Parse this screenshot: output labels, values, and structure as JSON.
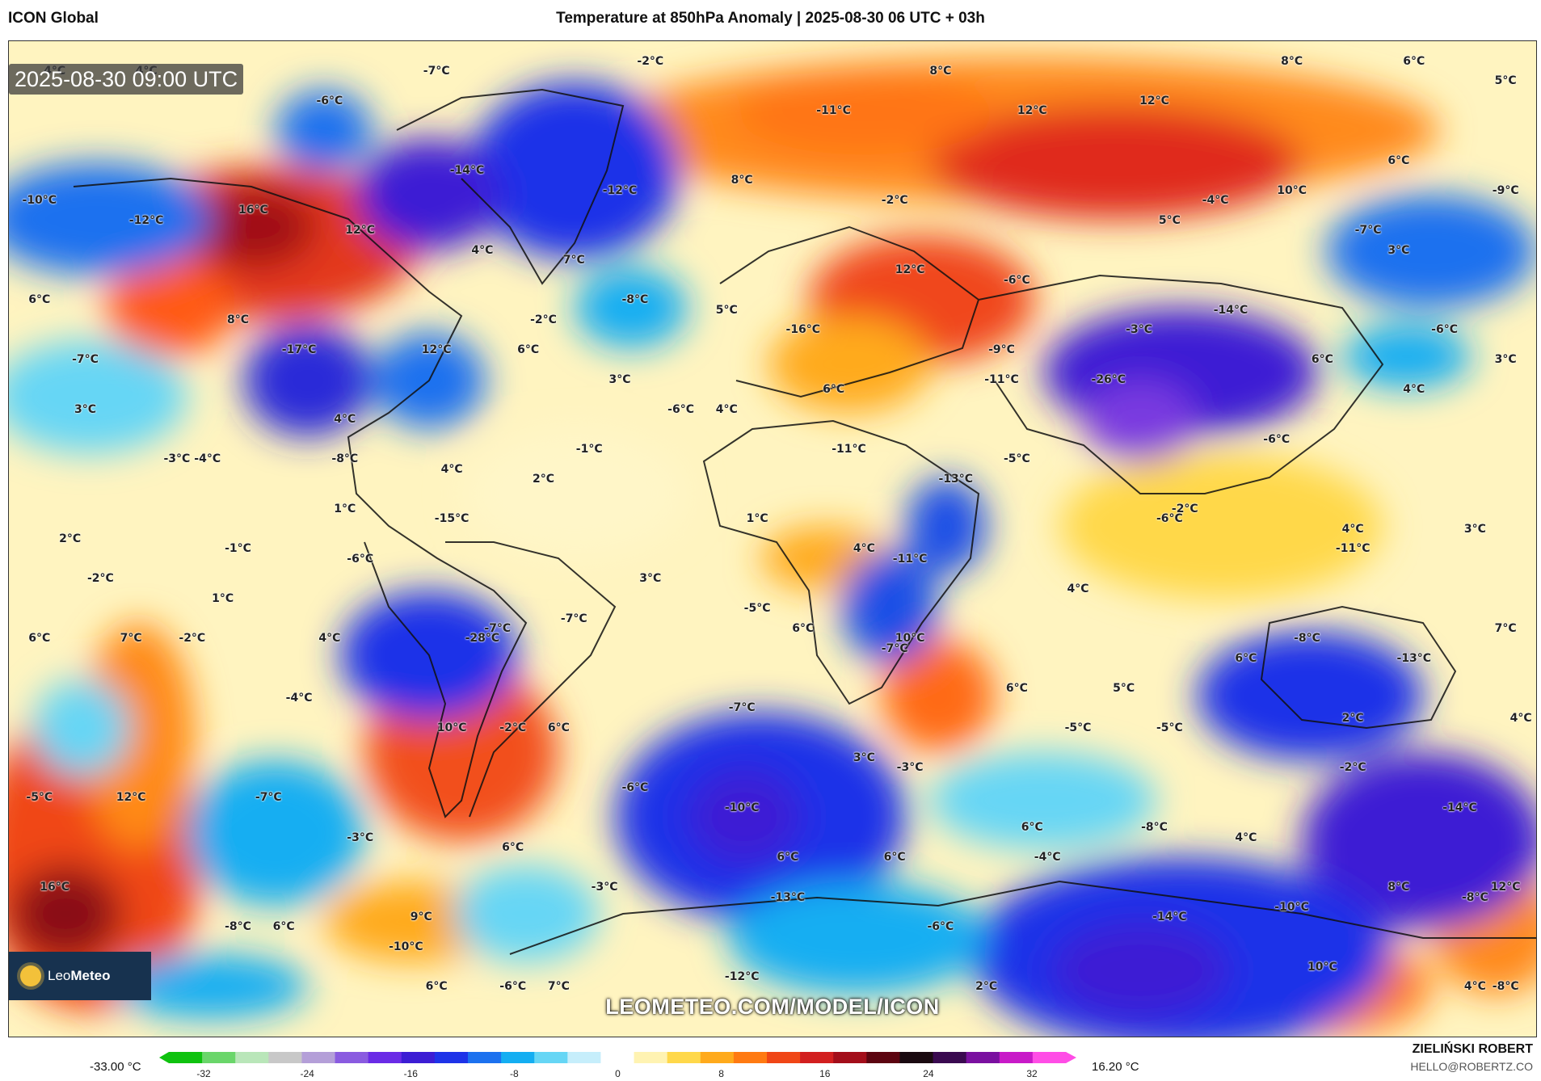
{
  "header": {
    "model": "ICON Global",
    "title": "Temperature at 850hPa Anomaly | 2025-08-30 06 UTC + 03h"
  },
  "map": {
    "valid_time": "2025-08-30 09:00 UTC",
    "watermark_url": "LEOMETEO.COM/MODEL/ICON",
    "logo_text_light": "Leo",
    "logo_text_bold": "Meteo",
    "labels": [
      {
        "t": "4°C",
        "x": 3,
        "y": 3
      },
      {
        "t": "4°C",
        "x": 9,
        "y": 3
      },
      {
        "t": "-7°C",
        "x": 28,
        "y": 3
      },
      {
        "t": "-2°C",
        "x": 42,
        "y": 2
      },
      {
        "t": "8°C",
        "x": 61,
        "y": 3
      },
      {
        "t": "8°C",
        "x": 84,
        "y": 2
      },
      {
        "t": "6°C",
        "x": 92,
        "y": 2
      },
      {
        "t": "5°C",
        "x": 98,
        "y": 4
      },
      {
        "t": "-6°C",
        "x": 21,
        "y": 6
      },
      {
        "t": "-11°C",
        "x": 54,
        "y": 7
      },
      {
        "t": "12°C",
        "x": 67,
        "y": 7
      },
      {
        "t": "12°C",
        "x": 75,
        "y": 6
      },
      {
        "t": "-14°C",
        "x": 30,
        "y": 13
      },
      {
        "t": "-12°C",
        "x": 40,
        "y": 15
      },
      {
        "t": "8°C",
        "x": 48,
        "y": 14
      },
      {
        "t": "6°C",
        "x": 91,
        "y": 12
      },
      {
        "t": "-10°C",
        "x": 2,
        "y": 16
      },
      {
        "t": "16°C",
        "x": 16,
        "y": 17
      },
      {
        "t": "-12°C",
        "x": 9,
        "y": 18
      },
      {
        "t": "12°C",
        "x": 23,
        "y": 19
      },
      {
        "t": "10°C",
        "x": 84,
        "y": 15
      },
      {
        "t": "5°C",
        "x": 76,
        "y": 18
      },
      {
        "t": "-4°C",
        "x": 79,
        "y": 16
      },
      {
        "t": "-9°C",
        "x": 98,
        "y": 15
      },
      {
        "t": "-2°C",
        "x": 58,
        "y": 16
      },
      {
        "t": "-7°C",
        "x": 89,
        "y": 19
      },
      {
        "t": "3°C",
        "x": 91,
        "y": 21
      },
      {
        "t": "4°C",
        "x": 31,
        "y": 21
      },
      {
        "t": "7°C",
        "x": 37,
        "y": 22
      },
      {
        "t": "12°C",
        "x": 59,
        "y": 23
      },
      {
        "t": "-6°C",
        "x": 66,
        "y": 24
      },
      {
        "t": "6°C",
        "x": 2,
        "y": 26
      },
      {
        "t": "8°C",
        "x": 15,
        "y": 28
      },
      {
        "t": "-8°C",
        "x": 41,
        "y": 26
      },
      {
        "t": "5°C",
        "x": 47,
        "y": 27
      },
      {
        "t": "-2°C",
        "x": 35,
        "y": 28
      },
      {
        "t": "-14°C",
        "x": 80,
        "y": 27
      },
      {
        "t": "-16°C",
        "x": 52,
        "y": 29
      },
      {
        "t": "-17°C",
        "x": 19,
        "y": 31
      },
      {
        "t": "12°C",
        "x": 28,
        "y": 31
      },
      {
        "t": "6°C",
        "x": 34,
        "y": 31
      },
      {
        "t": "-6°C",
        "x": 94,
        "y": 29
      },
      {
        "t": "-3°C",
        "x": 74,
        "y": 29
      },
      {
        "t": "-9°C",
        "x": 65,
        "y": 31
      },
      {
        "t": "-7°C",
        "x": 5,
        "y": 32
      },
      {
        "t": "6°C",
        "x": 86,
        "y": 32
      },
      {
        "t": "3°C",
        "x": 98,
        "y": 32
      },
      {
        "t": "3°C",
        "x": 40,
        "y": 34
      },
      {
        "t": "-11°C",
        "x": 65,
        "y": 34
      },
      {
        "t": "-26°C",
        "x": 72,
        "y": 34
      },
      {
        "t": "4°C",
        "x": 92,
        "y": 35
      },
      {
        "t": "6°C",
        "x": 54,
        "y": 35
      },
      {
        "t": "3°C",
        "x": 5,
        "y": 37
      },
      {
        "t": "4°C",
        "x": 22,
        "y": 38
      },
      {
        "t": "-6°C",
        "x": 44,
        "y": 37
      },
      {
        "t": "4°C",
        "x": 47,
        "y": 37
      },
      {
        "t": "-6°C",
        "x": 83,
        "y": 40
      },
      {
        "t": "-8°C",
        "x": 22,
        "y": 42
      },
      {
        "t": "-1°C",
        "x": 38,
        "y": 41
      },
      {
        "t": "-11°C",
        "x": 55,
        "y": 41
      },
      {
        "t": "-5°C",
        "x": 66,
        "y": 42
      },
      {
        "t": "-3°C",
        "x": 11,
        "y": 42
      },
      {
        "t": "-4°C",
        "x": 13,
        "y": 42
      },
      {
        "t": "4°C",
        "x": 29,
        "y": 43
      },
      {
        "t": "-13°C",
        "x": 62,
        "y": 44
      },
      {
        "t": "2°C",
        "x": 35,
        "y": 44
      },
      {
        "t": "1°C",
        "x": 22,
        "y": 47
      },
      {
        "t": "-2°C",
        "x": 77,
        "y": 47
      },
      {
        "t": "-6°C",
        "x": 76,
        "y": 48
      },
      {
        "t": "-15°C",
        "x": 29,
        "y": 48
      },
      {
        "t": "1°C",
        "x": 49,
        "y": 48
      },
      {
        "t": "2°C",
        "x": 4,
        "y": 50
      },
      {
        "t": "4°C",
        "x": 88,
        "y": 49
      },
      {
        "t": "3°C",
        "x": 96,
        "y": 49
      },
      {
        "t": "-1°C",
        "x": 15,
        "y": 51
      },
      {
        "t": "-6°C",
        "x": 23,
        "y": 52
      },
      {
        "t": "4°C",
        "x": 56,
        "y": 51
      },
      {
        "t": "-11°C",
        "x": 59,
        "y": 52
      },
      {
        "t": "-11°C",
        "x": 88,
        "y": 51
      },
      {
        "t": "-2°C",
        "x": 6,
        "y": 54
      },
      {
        "t": "3°C",
        "x": 42,
        "y": 54
      },
      {
        "t": "1°C",
        "x": 14,
        "y": 56
      },
      {
        "t": "4°C",
        "x": 70,
        "y": 55
      },
      {
        "t": "-5°C",
        "x": 49,
        "y": 57
      },
      {
        "t": "-7°C",
        "x": 37,
        "y": 58
      },
      {
        "t": "-7°C",
        "x": 32,
        "y": 59
      },
      {
        "t": "-2°C",
        "x": 12,
        "y": 60
      },
      {
        "t": "6°C",
        "x": 2,
        "y": 60
      },
      {
        "t": "7°C",
        "x": 8,
        "y": 60
      },
      {
        "t": "4°C",
        "x": 21,
        "y": 60
      },
      {
        "t": "-28°C",
        "x": 31,
        "y": 60
      },
      {
        "t": "6°C",
        "x": 52,
        "y": 59
      },
      {
        "t": "10°C",
        "x": 59,
        "y": 60
      },
      {
        "t": "-7°C",
        "x": 58,
        "y": 61
      },
      {
        "t": "7°C",
        "x": 98,
        "y": 59
      },
      {
        "t": "-8°C",
        "x": 85,
        "y": 60
      },
      {
        "t": "-13°C",
        "x": 92,
        "y": 62
      },
      {
        "t": "6°C",
        "x": 81,
        "y": 62
      },
      {
        "t": "6°C",
        "x": 66,
        "y": 65
      },
      {
        "t": "5°C",
        "x": 73,
        "y": 65
      },
      {
        "t": "-4°C",
        "x": 19,
        "y": 66
      },
      {
        "t": "-7°C",
        "x": 48,
        "y": 67
      },
      {
        "t": "2°C",
        "x": 88,
        "y": 68
      },
      {
        "t": "4°C",
        "x": 99,
        "y": 68
      },
      {
        "t": "10°C",
        "x": 29,
        "y": 69
      },
      {
        "t": "-2°C",
        "x": 33,
        "y": 69
      },
      {
        "t": "6°C",
        "x": 36,
        "y": 69
      },
      {
        "t": "-5°C",
        "x": 70,
        "y": 69
      },
      {
        "t": "-5°C",
        "x": 76,
        "y": 69
      },
      {
        "t": "3°C",
        "x": 56,
        "y": 72
      },
      {
        "t": "-3°C",
        "x": 59,
        "y": 73
      },
      {
        "t": "-2°C",
        "x": 88,
        "y": 73
      },
      {
        "t": "-5°C",
        "x": 2,
        "y": 76
      },
      {
        "t": "12°C",
        "x": 8,
        "y": 76
      },
      {
        "t": "-7°C",
        "x": 17,
        "y": 76
      },
      {
        "t": "-6°C",
        "x": 41,
        "y": 75
      },
      {
        "t": "-10°C",
        "x": 48,
        "y": 77
      },
      {
        "t": "-14°C",
        "x": 95,
        "y": 77
      },
      {
        "t": "-8°C",
        "x": 75,
        "y": 79
      },
      {
        "t": "6°C",
        "x": 67,
        "y": 79
      },
      {
        "t": "-3°C",
        "x": 23,
        "y": 80
      },
      {
        "t": "6°C",
        "x": 33,
        "y": 81
      },
      {
        "t": "4°C",
        "x": 81,
        "y": 80
      },
      {
        "t": "6°C",
        "x": 51,
        "y": 82
      },
      {
        "t": "6°C",
        "x": 58,
        "y": 82
      },
      {
        "t": "-4°C",
        "x": 68,
        "y": 82
      },
      {
        "t": "16°C",
        "x": 3,
        "y": 85
      },
      {
        "t": "-3°C",
        "x": 39,
        "y": 85
      },
      {
        "t": "-13°C",
        "x": 51,
        "y": 86
      },
      {
        "t": "8°C",
        "x": 91,
        "y": 85
      },
      {
        "t": "12°C",
        "x": 98,
        "y": 85
      },
      {
        "t": "-10°C",
        "x": 84,
        "y": 87
      },
      {
        "t": "-8°C",
        "x": 96,
        "y": 86
      },
      {
        "t": "-14°C",
        "x": 76,
        "y": 88
      },
      {
        "t": "9°C",
        "x": 27,
        "y": 88
      },
      {
        "t": "-8°C",
        "x": 15,
        "y": 89
      },
      {
        "t": "6°C",
        "x": 18,
        "y": 89
      },
      {
        "t": "-6°C",
        "x": 61,
        "y": 89
      },
      {
        "t": "-10°C",
        "x": 26,
        "y": 91
      },
      {
        "t": "10°C",
        "x": 86,
        "y": 93
      },
      {
        "t": "-12°C",
        "x": 2,
        "y": 95
      },
      {
        "t": "6°C",
        "x": 28,
        "y": 95
      },
      {
        "t": "-6°C",
        "x": 33,
        "y": 95
      },
      {
        "t": "7°C",
        "x": 36,
        "y": 95
      },
      {
        "t": "-12°C",
        "x": 48,
        "y": 94
      },
      {
        "t": "2°C",
        "x": 64,
        "y": 95
      },
      {
        "t": "4°C",
        "x": 96,
        "y": 95
      },
      {
        "t": "-8°C",
        "x": 98,
        "y": 95
      }
    ]
  },
  "colorbar": {
    "min_label": "-33.00 °C",
    "max_label": "16.20 °C",
    "ticks": [
      "-32",
      "-24",
      "-16",
      "-8",
      "0",
      "8",
      "16",
      "24",
      "32"
    ],
    "colors": [
      "#0fc20f",
      "#6ad66a",
      "#b9e6b9",
      "#c8c8c8",
      "#b49fd8",
      "#8a5be0",
      "#6a2be6",
      "#3c1dd4",
      "#1e33e8",
      "#1c71ef",
      "#14aef2",
      "#66d6f5",
      "#c6eefb",
      "#ffffff",
      "#fff3b2",
      "#ffd84a",
      "#ffaa1c",
      "#ff7a12",
      "#f04616",
      "#d21f1f",
      "#a30e1a",
      "#5c0510",
      "#1a0a10",
      "#3a0a50",
      "#7a10a0",
      "#c81ac8",
      "#ff4de6"
    ]
  },
  "footer": {
    "author": "ZIELIŃSKI ROBERT",
    "email": "HELLO@ROBERTZ.CO"
  }
}
